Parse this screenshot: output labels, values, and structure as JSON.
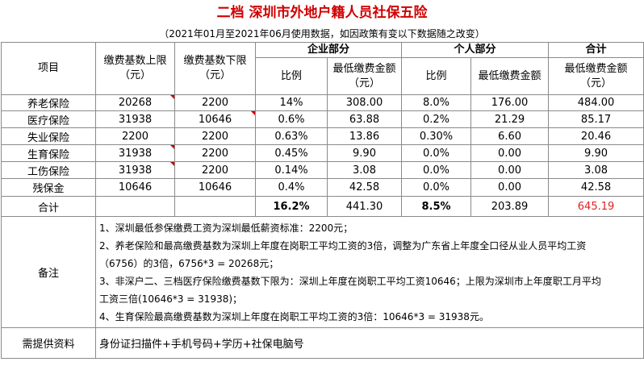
{
  "title": "二档 深圳市外地户籍人员社保五险",
  "subtitle": "（2021年01月至2021年06月使用数据，如因政策有变以下数据随之改变）",
  "header": {
    "item": "项目",
    "base_upper": "缴费基数上限",
    "base_lower": "缴费基数下限",
    "unit_yuan": "（元）",
    "enterprise": "企业部分",
    "personal": "个人部分",
    "total": "合计",
    "ratio": "比例",
    "min_amount": "最低缴费金额",
    "min_amount_unit": "（元）",
    "personal_min_amount": "最低缴费金额"
  },
  "rows": [
    {
      "name": "养老保险",
      "upper": "20268",
      "lower": "2200",
      "e_ratio": "14%",
      "e_amount": "308.00",
      "p_ratio": "8.0%",
      "p_amount": "176.00",
      "total": "484.00"
    },
    {
      "name": "医疗保险",
      "upper": "31938",
      "lower": "10646",
      "e_ratio": "0.6%",
      "e_amount": "63.88",
      "p_ratio": "0.2%",
      "p_amount": "21.29",
      "total": "85.17"
    },
    {
      "name": "失业保险",
      "upper": "2200",
      "lower": "2200",
      "e_ratio": "0.63%",
      "e_amount": "13.86",
      "p_ratio": "0.30%",
      "p_amount": "6.60",
      "total": "20.46"
    },
    {
      "name": "生育保险",
      "upper": "31938",
      "lower": "2200",
      "e_ratio": "0.45%",
      "e_amount": "9.90",
      "p_ratio": "0.0%",
      "p_amount": "0.00",
      "total": "9.90"
    },
    {
      "name": "工伤保险",
      "upper": "31938",
      "lower": "2200",
      "e_ratio": "0.14%",
      "e_amount": "3.08",
      "p_ratio": "0.0%",
      "p_amount": "0.00",
      "total": "3.08"
    },
    {
      "name": "残保金",
      "upper": "10646",
      "lower": "10646",
      "e_ratio": "0.4%",
      "e_amount": "42.58",
      "p_ratio": "0.0%",
      "p_amount": "0.00",
      "total": "42.58"
    }
  ],
  "totals": {
    "label": "合计",
    "e_ratio": "16.2%",
    "e_amount": "441.30",
    "p_ratio": "8.5%",
    "p_amount": "203.89",
    "total": "645.19"
  },
  "notes": {
    "label": "备注",
    "line1": "1、深圳最低参保缴费工资为深圳最低薪资标准：2200元；",
    "line2": "2、养老保险和最高缴费基数为深圳上年度在岗职工平均工资的3倍，调整为广东省上年度全口径从业人员平均工资",
    "line3": "（6756）的3倍，6756*3 = 20268元；",
    "line4": "3、非深户二、三档医疗保险缴费基数下限为：深圳上年度在岗职工平均工资10646；上限为深圳市上年度职工月平均",
    "line5": "工资三倍(10646*3 = 31938)；",
    "line6": "4、生育保险最高缴费基数为深圳上年度在岗职工平均工资的3倍：10646*3 = 31938元。"
  },
  "required": {
    "label": "需提供资料",
    "value": "身份证扫描件+手机号码+学历+社保电脑号"
  }
}
